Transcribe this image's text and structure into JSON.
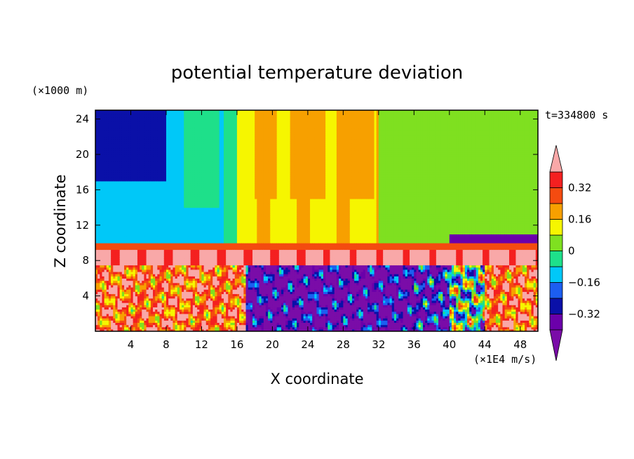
{
  "chart_data": {
    "type": "heatmap",
    "title": "potential temperature deviation",
    "xlabel": "X coordinate",
    "ylabel": "Z coordinate",
    "x_unit": "(×1E4 m/s)",
    "y_unit": "(×1000 m)",
    "time_label": "t=334800 s",
    "xlim": [
      0,
      50
    ],
    "ylim": [
      0,
      25
    ],
    "x_ticks": [
      4,
      8,
      12,
      16,
      20,
      24,
      28,
      32,
      36,
      40,
      44,
      48
    ],
    "y_ticks": [
      4,
      8,
      12,
      16,
      20,
      24
    ],
    "colorbar": {
      "levels": [
        -0.4,
        -0.32,
        -0.24,
        -0.16,
        -0.08,
        0,
        0.08,
        0.16,
        0.24,
        0.32,
        0.4
      ],
      "tick_labels": [
        "-0.32",
        "-0.16",
        "0",
        "0.16",
        "0.32"
      ],
      "tick_values": [
        -0.32,
        -0.16,
        0,
        0.16,
        0.32
      ],
      "colors": [
        "#7a0ca8",
        "#6b00aa",
        "#0a10a8",
        "#1c5ef0",
        "#00c8f8",
        "#1ee08a",
        "#7fe020",
        "#f6f600",
        "#f7a000",
        "#f44b10",
        "#f42020",
        "#f9a8a8"
      ],
      "extend": "both"
    },
    "regions": [
      {
        "x": [
          0,
          50
        ],
        "z": [
          0,
          7.5
        ],
        "value": "mixed"
      },
      {
        "x": [
          0,
          50
        ],
        "z": [
          7.5,
          9.5
        ],
        "value": 0.4
      },
      {
        "x": [
          0,
          15
        ],
        "z": [
          9.5,
          25
        ],
        "value": -0.1
      },
      {
        "x": [
          15,
          32
        ],
        "z": [
          9.5,
          25
        ],
        "value": 0.15
      },
      {
        "x": [
          32,
          50
        ],
        "z": [
          9.5,
          25
        ],
        "value": 0.02
      }
    ]
  }
}
